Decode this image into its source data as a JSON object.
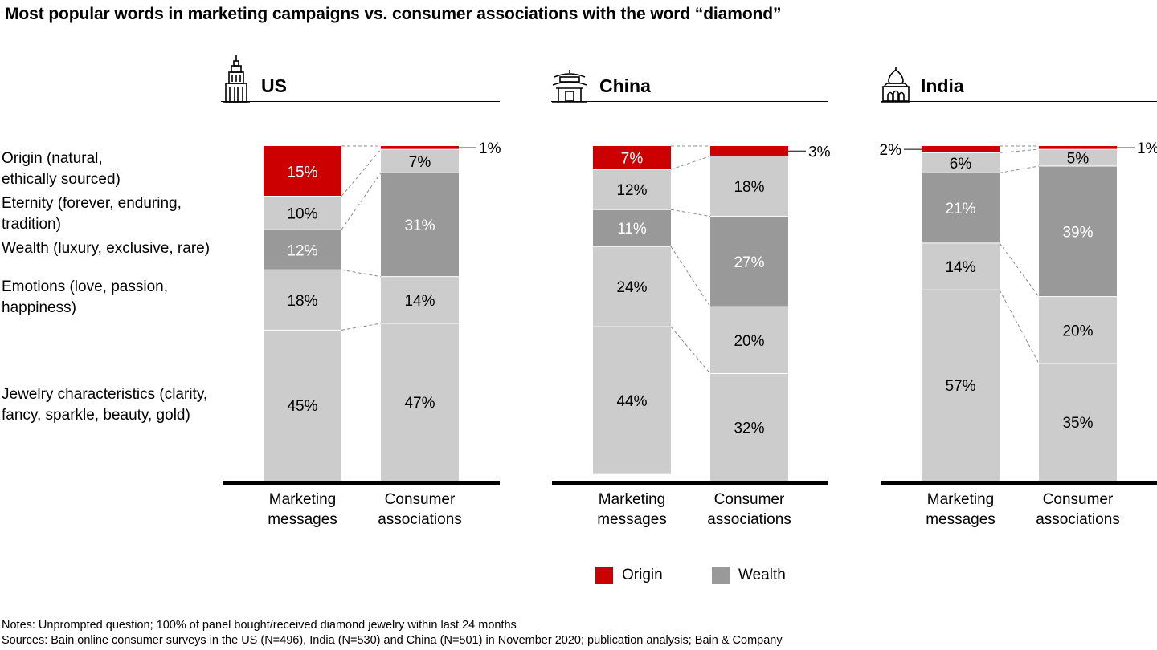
{
  "title": "Most popular words in marketing campaigns vs. consumer associations with the word “diamond”",
  "category_labels": [
    {
      "line1": "Origin (natural,",
      "line2": "ethically sourced)"
    },
    {
      "line1": "Eternity (forever, enduring,",
      "line2": "tradition)"
    },
    {
      "line1": "Wealth (luxury, exclusive, rare)",
      "line2": ""
    },
    {
      "line1": "Emotions (love, passion,",
      "line2": "happiness)"
    },
    {
      "line1": "Jewelry characteristics (clarity,",
      "line2": "fancy, sparkle, beauty, gold)"
    }
  ],
  "panels": [
    {
      "name": "US",
      "icon": "skyscraper-icon"
    },
    {
      "name": "China",
      "icon": "pagoda-icon"
    },
    {
      "name": "India",
      "icon": "palace-icon"
    }
  ],
  "legend": {
    "origin": "Origin",
    "wealth": "Wealth"
  },
  "notes": "Notes: Unprompted question; 100% of panel bought/received diamond jewelry within last 24 months",
  "sources": "Sources: Bain online consumer surveys in the US (N=496), India (N=530) and China (N=501) in November 2020; publication analysis; Bain & Company",
  "colors": {
    "origin": "#cc0000",
    "wealth": "#999999",
    "other": "#cccccc",
    "baseline": "#000000",
    "connector": "#8c8c8c"
  },
  "chart_data": {
    "type": "bar",
    "stacked": true,
    "percent": true,
    "categories": [
      "Marketing messages",
      "Consumer associations"
    ],
    "category_lines": [
      [
        "Marketing",
        "messages"
      ],
      [
        "Consumer",
        "associations"
      ]
    ],
    "segments": [
      "Origin",
      "Eternity",
      "Wealth",
      "Emotions",
      "Jewelry characteristics"
    ],
    "groups": [
      {
        "name": "US",
        "values": [
          [
            15,
            10,
            12,
            18,
            45
          ],
          [
            1,
            7,
            31,
            14,
            47
          ]
        ]
      },
      {
        "name": "China",
        "values": [
          [
            7,
            12,
            11,
            24,
            44
          ],
          [
            3,
            18,
            27,
            20,
            32
          ]
        ]
      },
      {
        "name": "India",
        "values": [
          [
            2,
            6,
            21,
            14,
            57
          ],
          [
            1,
            5,
            39,
            20,
            35
          ]
        ]
      }
    ],
    "ylim": [
      0,
      100
    ]
  }
}
